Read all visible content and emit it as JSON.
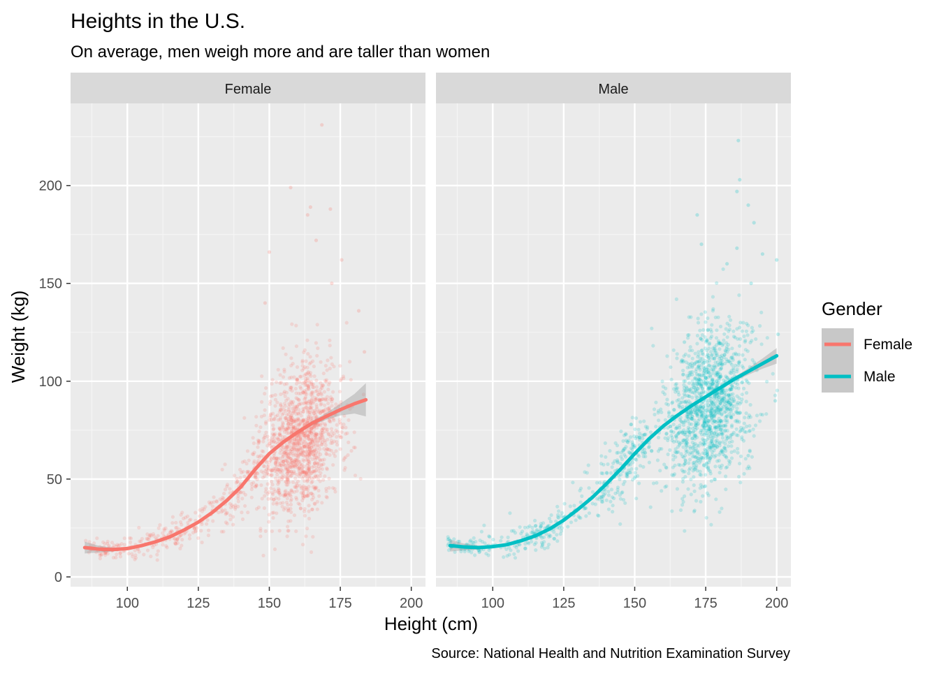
{
  "chart_data": {
    "type": "scatter",
    "title": "Heights in the U.S.",
    "subtitle": "On average, men weigh more and are taller than women",
    "xlabel": "Height (cm)",
    "ylabel": "Weight (kg)",
    "caption": "Source: National Health and Nutrition Examination Survey",
    "xlim": [
      80,
      205
    ],
    "ylim": [
      -5,
      242
    ],
    "x_ticks": [
      100,
      125,
      150,
      175,
      200
    ],
    "x_tick_labels": [
      "100",
      "125",
      "150",
      "175",
      "200"
    ],
    "y_ticks": [
      0,
      50,
      100,
      150,
      200
    ],
    "y_tick_labels": [
      "0",
      "50",
      "100",
      "150",
      "200"
    ],
    "grid": true,
    "legend": {
      "title": "Gender",
      "position": "right",
      "entries": [
        "Female",
        "Male"
      ]
    },
    "facets": [
      "Female",
      "Male"
    ],
    "panels": [
      {
        "facet_label": "Female",
        "series": "Female",
        "color": "#F8766D",
        "smooth": {
          "x": [
            85,
            90,
            95,
            100,
            105,
            110,
            115,
            120,
            125,
            130,
            135,
            140,
            145,
            150,
            155,
            160,
            165,
            170,
            175,
            180,
            184
          ],
          "y": [
            15,
            14.2,
            14,
            14.5,
            16,
            18,
            20.5,
            24,
            28,
            33,
            39,
            46,
            55,
            63,
            69,
            74,
            78.5,
            82,
            85.5,
            88.5,
            90.5
          ],
          "se_lo": [
            12,
            12.5,
            13,
            13.8,
            15.3,
            17.4,
            20,
            23.4,
            27.4,
            32.3,
            38.2,
            45,
            53.8,
            61.8,
            68,
            73,
            77.3,
            80.3,
            82.5,
            83.5,
            82
          ],
          "se_hi": [
            18,
            15.9,
            15,
            15.2,
            16.7,
            18.6,
            21,
            24.6,
            28.6,
            33.7,
            39.8,
            47,
            56.2,
            64.2,
            70,
            75,
            79.7,
            83.7,
            88.5,
            93.5,
            99
          ]
        },
        "point_clouds": [
          {
            "x_mean": 92,
            "x_sd": 4.5,
            "y_slope": true,
            "y_sd": 2.2,
            "n": 60
          },
          {
            "x_mean": 115,
            "x_sd": 9,
            "y_slope": true,
            "y_sd": 4,
            "n": 150
          },
          {
            "x_mean": 140,
            "x_sd": 6,
            "y_slope": true,
            "y_sd": 8,
            "n": 150
          },
          {
            "x_mean": 161,
            "x_sd": 6.8,
            "y_mean": 70,
            "y_sd": 19,
            "n": 1300
          }
        ],
        "outliers": [
          [
            168.5,
            231
          ],
          [
            157.5,
            199
          ],
          [
            164.5,
            189
          ],
          [
            171.5,
            188
          ],
          [
            163.5,
            185
          ],
          [
            150,
            166
          ],
          [
            166.5,
            172
          ],
          [
            175.5,
            162
          ],
          [
            181.5,
            136
          ],
          [
            183.5,
            115
          ],
          [
            148.5,
            140
          ],
          [
            172,
            150
          ]
        ]
      },
      {
        "facet_label": "Male",
        "series": "Male",
        "color": "#00BFC4",
        "smooth": {
          "x": [
            85,
            90,
            95,
            100,
            105,
            110,
            115,
            120,
            125,
            130,
            135,
            140,
            145,
            150,
            155,
            160,
            165,
            170,
            175,
            180,
            185,
            190,
            195,
            200
          ],
          "y": [
            16,
            15.3,
            15,
            15.5,
            16.5,
            18.5,
            21,
            24.5,
            29,
            34.5,
            40.5,
            47.5,
            55,
            63,
            70.5,
            77,
            82.5,
            87.5,
            92,
            96.5,
            101,
            105,
            109,
            113
          ],
          "se_lo": [
            13,
            13.6,
            14,
            14.8,
            16,
            18,
            20.5,
            24,
            28.5,
            34,
            40,
            47,
            54.4,
            62.4,
            70,
            76.5,
            82,
            87,
            91.4,
            95.8,
            100,
            103.3,
            106.4,
            109
          ],
          "se_hi": [
            19,
            17,
            16,
            16.2,
            17,
            19,
            21.5,
            25,
            29.5,
            35,
            41,
            48,
            55.6,
            63.6,
            71,
            77.5,
            83,
            88,
            92.6,
            97.2,
            102,
            106.7,
            111.6,
            117
          ]
        },
        "point_clouds": [
          {
            "x_mean": 93,
            "x_sd": 5,
            "y_slope": true,
            "y_sd": 2.3,
            "n": 70
          },
          {
            "x_mean": 118,
            "x_sd": 10,
            "y_slope": true,
            "y_sd": 4.5,
            "n": 170
          },
          {
            "x_mean": 147,
            "x_sd": 7,
            "y_slope": true,
            "y_sd": 9,
            "n": 220
          },
          {
            "x_mean": 176,
            "x_sd": 7.5,
            "y_mean": 87,
            "y_sd": 20,
            "n": 1300
          }
        ],
        "outliers": [
          [
            186.5,
            223
          ],
          [
            187,
            203
          ],
          [
            186,
            197
          ],
          [
            190,
            190
          ],
          [
            192,
            181
          ],
          [
            172,
            185
          ],
          [
            173.5,
            170
          ],
          [
            186,
            168
          ],
          [
            195,
            165
          ],
          [
            200,
            162
          ],
          [
            182.5,
            160
          ],
          [
            191,
            150
          ],
          [
            167.5,
            120
          ],
          [
            200.5,
            124
          ],
          [
            199.5,
            90
          ],
          [
            190,
            62
          ]
        ]
      }
    ]
  }
}
